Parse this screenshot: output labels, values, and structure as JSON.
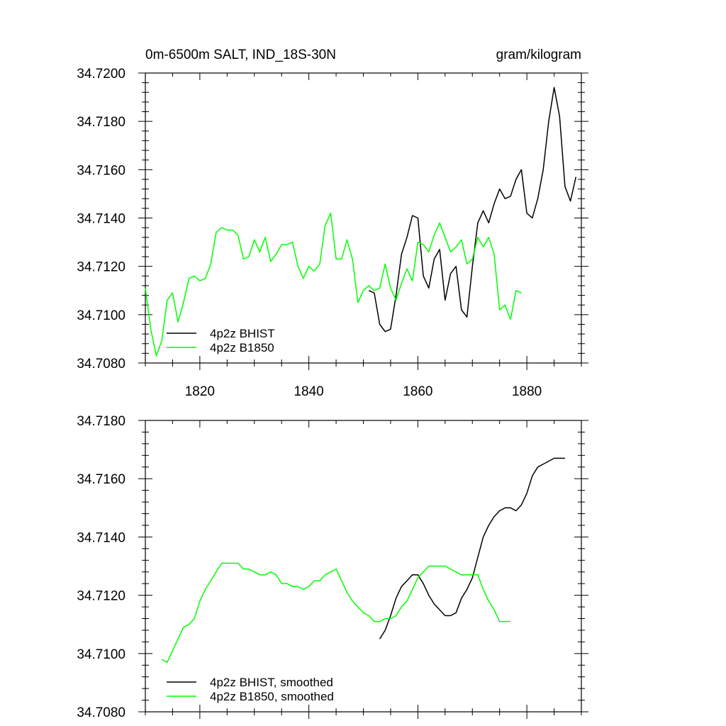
{
  "chart_data": [
    {
      "type": "line",
      "title_left": "0m-6500m SALT, IND_18S-30N",
      "title_right": "gram/kilogram",
      "xlim": [
        1810,
        1890
      ],
      "ylim": [
        34.708,
        34.72
      ],
      "x_ticks": [
        1820,
        1840,
        1860,
        1880
      ],
      "x_tick_labels": [
        "1820",
        "1840",
        "1860",
        "1880"
      ],
      "y_ticks": [
        34.708,
        34.71,
        34.712,
        34.714,
        34.716,
        34.718,
        34.72
      ],
      "y_tick_labels": [
        "34.7080",
        "34.7100",
        "34.7120",
        "34.7140",
        "34.7160",
        "34.7180",
        "34.7200"
      ],
      "legend_position": "bottom-left",
      "series": [
        {
          "name": "4p2z BHIST",
          "color": "#000000",
          "x": [
            1851,
            1852,
            1853,
            1854,
            1855,
            1856,
            1857,
            1858,
            1859,
            1860,
            1861,
            1862,
            1863,
            1864,
            1865,
            1866,
            1867,
            1868,
            1869,
            1870,
            1871,
            1872,
            1873,
            1874,
            1875,
            1876,
            1877,
            1878,
            1879,
            1880,
            1881,
            1882,
            1883,
            1884,
            1885,
            1886,
            1887,
            1888,
            1889
          ],
          "y": [
            34.711,
            34.7109,
            34.7096,
            34.7093,
            34.7094,
            34.7108,
            34.7125,
            34.7132,
            34.7141,
            34.714,
            34.7116,
            34.7111,
            34.7123,
            34.7127,
            34.7106,
            34.7117,
            34.712,
            34.7102,
            34.7099,
            34.712,
            34.7138,
            34.7143,
            34.7138,
            34.7146,
            34.7152,
            34.7148,
            34.7149,
            34.7156,
            34.716,
            34.7142,
            34.714,
            34.7148,
            34.716,
            34.718,
            34.7194,
            34.7182,
            34.7153,
            34.7147,
            34.7157
          ]
        },
        {
          "name": "4p2z B1850",
          "color": "#00ff00",
          "x": [
            1810,
            1811,
            1812,
            1813,
            1814,
            1815,
            1816,
            1817,
            1818,
            1819,
            1820,
            1821,
            1822,
            1823,
            1824,
            1825,
            1826,
            1827,
            1828,
            1829,
            1830,
            1831,
            1832,
            1833,
            1834,
            1835,
            1836,
            1837,
            1838,
            1839,
            1840,
            1841,
            1842,
            1843,
            1844,
            1845,
            1846,
            1847,
            1848,
            1849,
            1850,
            1851,
            1852,
            1853,
            1854,
            1855,
            1856,
            1857,
            1858,
            1859,
            1860,
            1861,
            1862,
            1863,
            1864,
            1865,
            1866,
            1867,
            1868,
            1869,
            1870,
            1871,
            1872,
            1873,
            1874,
            1875,
            1876,
            1877,
            1878,
            1879
          ],
          "y": [
            34.7111,
            34.7094,
            34.7083,
            34.7089,
            34.7106,
            34.7109,
            34.7097,
            34.7105,
            34.7115,
            34.7116,
            34.7114,
            34.7115,
            34.7121,
            34.7134,
            34.7136,
            34.7135,
            34.7135,
            34.7133,
            34.7123,
            34.7124,
            34.7131,
            34.7126,
            34.7132,
            34.7122,
            34.7125,
            34.7129,
            34.7129,
            34.713,
            34.712,
            34.7115,
            34.712,
            34.7118,
            34.7121,
            34.7137,
            34.7142,
            34.7123,
            34.7123,
            34.7131,
            34.7123,
            34.7105,
            34.711,
            34.7112,
            34.711,
            34.7111,
            34.7121,
            34.7111,
            34.7106,
            34.7113,
            34.7119,
            34.7114,
            34.713,
            34.7129,
            34.7126,
            34.7133,
            34.7138,
            34.7132,
            34.7126,
            34.7128,
            34.7131,
            34.7121,
            34.7123,
            34.7132,
            34.7128,
            34.7132,
            34.7125,
            34.7102,
            34.7104,
            34.7098,
            34.711,
            34.7109
          ]
        }
      ]
    },
    {
      "type": "line",
      "title": "",
      "xlim": [
        1810,
        1890
      ],
      "ylim": [
        34.708,
        34.718
      ],
      "x_ticks": [
        1820,
        1840,
        1860,
        1880
      ],
      "y_ticks": [
        34.708,
        34.71,
        34.712,
        34.714,
        34.716,
        34.718
      ],
      "y_tick_labels": [
        "34.7080",
        "34.7100",
        "34.7120",
        "34.7140",
        "34.7160",
        "34.7180"
      ],
      "legend_position": "bottom-left",
      "series": [
        {
          "name": "4p2z BHIST, smoothed",
          "color": "#000000",
          "x": [
            1853,
            1854,
            1855,
            1856,
            1857,
            1858,
            1859,
            1860,
            1861,
            1862,
            1863,
            1864,
            1865,
            1866,
            1867,
            1868,
            1869,
            1870,
            1871,
            1872,
            1873,
            1874,
            1875,
            1876,
            1877,
            1878,
            1879,
            1880,
            1881,
            1882,
            1883,
            1884,
            1885,
            1886,
            1887
          ],
          "y": [
            34.7105,
            34.7108,
            34.7113,
            34.7119,
            34.7123,
            34.7125,
            34.7127,
            34.7127,
            34.7124,
            34.712,
            34.7117,
            34.7115,
            34.7113,
            34.7113,
            34.7114,
            34.7119,
            34.7122,
            34.7126,
            34.7133,
            34.714,
            34.7144,
            34.7147,
            34.7149,
            34.715,
            34.715,
            34.7149,
            34.7151,
            34.7155,
            34.7161,
            34.7164,
            34.7165,
            34.7166,
            34.7167,
            34.7167,
            34.7167
          ]
        },
        {
          "name": "4p2z B1850, smoothed",
          "color": "#00ff00",
          "x": [
            1813,
            1814,
            1815,
            1816,
            1817,
            1818,
            1819,
            1820,
            1821,
            1822,
            1823,
            1824,
            1825,
            1826,
            1827,
            1828,
            1829,
            1830,
            1831,
            1832,
            1833,
            1834,
            1835,
            1836,
            1837,
            1838,
            1839,
            1840,
            1841,
            1842,
            1843,
            1844,
            1845,
            1846,
            1847,
            1848,
            1849,
            1850,
            1851,
            1852,
            1853,
            1854,
            1855,
            1856,
            1857,
            1858,
            1859,
            1860,
            1861,
            1862,
            1863,
            1864,
            1865,
            1866,
            1867,
            1868,
            1869,
            1870,
            1871,
            1872,
            1873,
            1874,
            1875,
            1876,
            1877
          ],
          "y": [
            34.7098,
            34.7097,
            34.7101,
            34.7105,
            34.7109,
            34.711,
            34.7112,
            34.7118,
            34.7122,
            34.7125,
            34.7128,
            34.7131,
            34.7131,
            34.7131,
            34.7131,
            34.7129,
            34.7129,
            34.7128,
            34.7127,
            34.7127,
            34.7128,
            34.7127,
            34.7124,
            34.7124,
            34.7123,
            34.7123,
            34.7122,
            34.7123,
            34.7125,
            34.7125,
            34.7127,
            34.7128,
            34.7129,
            34.7125,
            34.7121,
            34.7118,
            34.7116,
            34.7114,
            34.7113,
            34.7111,
            34.7111,
            34.7112,
            34.7112,
            34.7113,
            34.7116,
            34.7118,
            34.7122,
            34.7126,
            34.7128,
            34.713,
            34.713,
            34.713,
            34.713,
            34.7129,
            34.7128,
            34.7127,
            34.7127,
            34.7127,
            34.7127,
            34.7122,
            34.7118,
            34.7115,
            34.7111,
            34.7111,
            34.7111
          ]
        }
      ]
    }
  ]
}
